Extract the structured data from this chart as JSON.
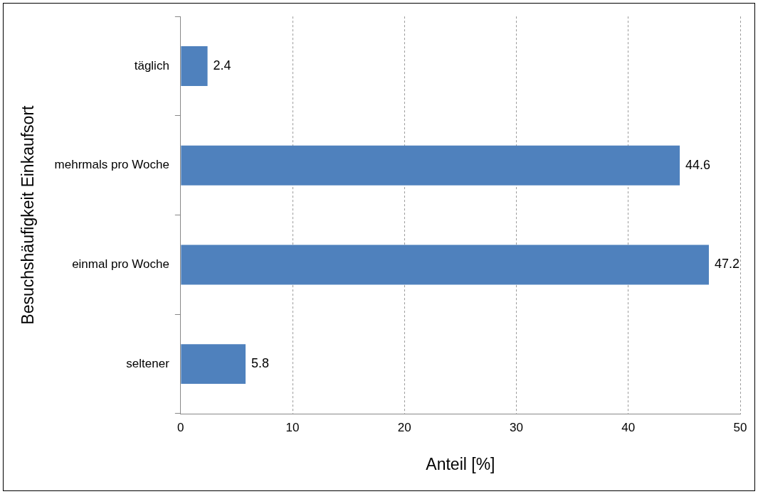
{
  "chart_data": {
    "type": "bar",
    "orientation": "horizontal",
    "xlabel": "Anteil [%]",
    "ylabel": "Besuchshäufigkeit Einkaufsort",
    "categories": [
      "täglich",
      "mehrmals pro Woche",
      "einmal pro Woche",
      "seltener"
    ],
    "values": [
      2.4,
      44.6,
      47.2,
      5.8
    ],
    "color": "#4f81bd",
    "xlim": [
      0,
      50
    ],
    "xticks": [
      0,
      10,
      20,
      30,
      40,
      50
    ],
    "grid": "x",
    "data_labels": true
  }
}
